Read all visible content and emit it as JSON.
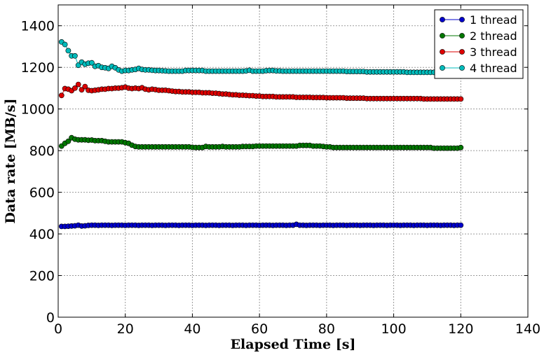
{
  "chart_data": {
    "type": "line",
    "xlabel": "Elapsed Time [s]",
    "ylabel": "Data rate [MB/s]",
    "xlim": [
      0,
      140
    ],
    "ylim": [
      0,
      1500
    ],
    "xticks": [
      0,
      20,
      40,
      60,
      80,
      100,
      120,
      140
    ],
    "yticks": [
      0,
      200,
      400,
      600,
      800,
      1000,
      1200,
      1400
    ],
    "grid": true,
    "legend_position": "top-right",
    "series": [
      {
        "name": "1 thread",
        "color": "#0000cc",
        "x": [
          1,
          2,
          3,
          4,
          5,
          6,
          7,
          8,
          9,
          10,
          11,
          12,
          13,
          14,
          15,
          16,
          17,
          18,
          19,
          20,
          21,
          22,
          23,
          24,
          25,
          26,
          27,
          28,
          29,
          30,
          31,
          32,
          33,
          34,
          35,
          36,
          37,
          38,
          39,
          40,
          41,
          42,
          43,
          44,
          45,
          46,
          47,
          48,
          49,
          50,
          51,
          52,
          53,
          54,
          55,
          56,
          57,
          58,
          59,
          60,
          61,
          62,
          63,
          64,
          65,
          66,
          67,
          68,
          69,
          70,
          71,
          72,
          73,
          74,
          75,
          76,
          77,
          78,
          79,
          80,
          81,
          82,
          83,
          84,
          85,
          86,
          87,
          88,
          89,
          90,
          91,
          92,
          93,
          94,
          95,
          96,
          97,
          98,
          99,
          100,
          101,
          102,
          103,
          104,
          105,
          106,
          107,
          108,
          109,
          110,
          111,
          112,
          113,
          114,
          115,
          116,
          117,
          118,
          119,
          120
        ],
        "y": [
          436,
          436,
          437,
          438,
          439,
          442,
          438,
          439,
          441,
          442,
          442,
          441,
          442,
          442,
          442,
          441,
          442,
          442,
          442,
          441,
          442,
          442,
          442,
          441,
          442,
          442,
          442,
          441,
          442,
          442,
          442,
          441,
          442,
          442,
          442,
          441,
          442,
          442,
          442,
          441,
          442,
          442,
          442,
          441,
          442,
          442,
          442,
          441,
          442,
          442,
          442,
          441,
          442,
          442,
          442,
          441,
          442,
          442,
          442,
          441,
          442,
          442,
          442,
          441,
          442,
          442,
          442,
          441,
          442,
          442,
          446,
          442,
          442,
          441,
          442,
          442,
          442,
          441,
          442,
          442,
          442,
          441,
          442,
          442,
          442,
          441,
          442,
          442,
          442,
          441,
          442,
          442,
          442,
          441,
          442,
          442,
          442,
          441,
          442,
          442,
          442,
          441,
          442,
          442,
          442,
          441,
          442,
          442,
          442,
          441,
          442,
          442,
          442,
          441,
          442,
          442,
          442,
          441,
          442,
          442
        ]
      },
      {
        "name": "2 thread",
        "color": "#007700",
        "x": [
          1,
          2,
          3,
          4,
          5,
          6,
          7,
          8,
          9,
          10,
          11,
          12,
          13,
          14,
          15,
          16,
          17,
          18,
          19,
          20,
          21,
          22,
          23,
          24,
          25,
          26,
          27,
          28,
          29,
          30,
          31,
          32,
          33,
          34,
          35,
          36,
          37,
          38,
          39,
          40,
          41,
          42,
          43,
          44,
          45,
          46,
          47,
          48,
          49,
          50,
          51,
          52,
          53,
          54,
          55,
          56,
          57,
          58,
          59,
          60,
          61,
          62,
          63,
          64,
          65,
          66,
          67,
          68,
          69,
          70,
          71,
          72,
          73,
          74,
          75,
          76,
          77,
          78,
          79,
          80,
          81,
          82,
          83,
          84,
          85,
          86,
          87,
          88,
          89,
          90,
          91,
          92,
          93,
          94,
          95,
          96,
          97,
          98,
          99,
          100,
          101,
          102,
          103,
          104,
          105,
          106,
          107,
          108,
          109,
          110,
          111,
          112,
          113,
          114,
          115,
          116,
          117,
          118,
          119,
          120
        ],
        "y": [
          822,
          835,
          845,
          862,
          855,
          852,
          852,
          852,
          850,
          851,
          848,
          848,
          848,
          845,
          842,
          842,
          842,
          842,
          842,
          838,
          835,
          826,
          820,
          818,
          818,
          818,
          818,
          818,
          818,
          818,
          818,
          818,
          818,
          818,
          818,
          818,
          818,
          818,
          818,
          816,
          815,
          815,
          815,
          820,
          818,
          818,
          818,
          818,
          820,
          818,
          818,
          818,
          818,
          818,
          820,
          820,
          820,
          820,
          822,
          822,
          822,
          822,
          822,
          822,
          822,
          822,
          822,
          822,
          822,
          822,
          822,
          825,
          825,
          825,
          825,
          822,
          822,
          822,
          820,
          818,
          818,
          815,
          815,
          815,
          815,
          815,
          815,
          815,
          815,
          815,
          815,
          815,
          815,
          815,
          815,
          815,
          815,
          815,
          815,
          815,
          815,
          815,
          815,
          815,
          815,
          815,
          815,
          815,
          815,
          815,
          815,
          812,
          812,
          812,
          812,
          812,
          812,
          812,
          812,
          815
        ]
      },
      {
        "name": "3 thread",
        "color": "#dd0000",
        "x": [
          1,
          2,
          3,
          4,
          5,
          6,
          7,
          8,
          9,
          10,
          11,
          12,
          13,
          14,
          15,
          16,
          17,
          18,
          19,
          20,
          21,
          22,
          23,
          24,
          25,
          26,
          27,
          28,
          29,
          30,
          31,
          32,
          33,
          34,
          35,
          36,
          37,
          38,
          39,
          40,
          41,
          42,
          43,
          44,
          45,
          46,
          47,
          48,
          49,
          50,
          51,
          52,
          53,
          54,
          55,
          56,
          57,
          58,
          59,
          60,
          61,
          62,
          63,
          64,
          65,
          66,
          67,
          68,
          69,
          70,
          71,
          72,
          73,
          74,
          75,
          76,
          77,
          78,
          79,
          80,
          81,
          82,
          83,
          84,
          85,
          86,
          87,
          88,
          89,
          90,
          91,
          92,
          93,
          94,
          95,
          96,
          97,
          98,
          99,
          100,
          101,
          102,
          103,
          104,
          105,
          106,
          107,
          108,
          109,
          110,
          111,
          112,
          113,
          114,
          115,
          116,
          117,
          118,
          119,
          120
        ],
        "y": [
          1065,
          1098,
          1095,
          1088,
          1100,
          1118,
          1092,
          1108,
          1090,
          1088,
          1090,
          1092,
          1095,
          1095,
          1098,
          1098,
          1100,
          1100,
          1102,
          1105,
          1100,
          1098,
          1100,
          1098,
          1102,
          1095,
          1092,
          1095,
          1093,
          1090,
          1090,
          1090,
          1088,
          1086,
          1084,
          1084,
          1082,
          1082,
          1082,
          1080,
          1080,
          1080,
          1078,
          1078,
          1078,
          1076,
          1076,
          1074,
          1072,
          1072,
          1070,
          1068,
          1068,
          1066,
          1066,
          1065,
          1064,
          1064,
          1062,
          1062,
          1060,
          1060,
          1060,
          1060,
          1058,
          1058,
          1058,
          1058,
          1058,
          1058,
          1056,
          1056,
          1056,
          1056,
          1056,
          1055,
          1055,
          1055,
          1055,
          1054,
          1054,
          1054,
          1054,
          1054,
          1054,
          1052,
          1052,
          1052,
          1052,
          1052,
          1052,
          1050,
          1050,
          1050,
          1050,
          1050,
          1050,
          1050,
          1050,
          1050,
          1050,
          1050,
          1050,
          1050,
          1050,
          1050,
          1050,
          1050,
          1048,
          1048,
          1048,
          1048,
          1048,
          1048,
          1048,
          1048,
          1048,
          1048,
          1048,
          1048
        ]
      },
      {
        "name": "4 thread",
        "color": "#00bbbb",
        "x": [
          1,
          2,
          3,
          4,
          5,
          6,
          7,
          8,
          9,
          10,
          11,
          12,
          13,
          14,
          15,
          16,
          17,
          18,
          19,
          20,
          21,
          22,
          23,
          24,
          25,
          26,
          27,
          28,
          29,
          30,
          31,
          32,
          33,
          34,
          35,
          36,
          37,
          38,
          39,
          40,
          41,
          42,
          43,
          44,
          45,
          46,
          47,
          48,
          49,
          50,
          51,
          52,
          53,
          54,
          55,
          56,
          57,
          58,
          59,
          60,
          61,
          62,
          63,
          64,
          65,
          66,
          67,
          68,
          69,
          70,
          71,
          72,
          73,
          74,
          75,
          76,
          77,
          78,
          79,
          80,
          81,
          82,
          83,
          84,
          85,
          86,
          87,
          88,
          89,
          90,
          91,
          92,
          93,
          94,
          95,
          96,
          97,
          98,
          99,
          100,
          101,
          102,
          103,
          104,
          105,
          106,
          107,
          108,
          109,
          110,
          111,
          112,
          113,
          114,
          115,
          116,
          117,
          118,
          119,
          120
        ],
        "y": [
          1322,
          1310,
          1280,
          1255,
          1255,
          1210,
          1225,
          1215,
          1220,
          1222,
          1205,
          1208,
          1200,
          1198,
          1195,
          1205,
          1198,
          1188,
          1182,
          1185,
          1185,
          1188,
          1190,
          1195,
          1190,
          1188,
          1188,
          1186,
          1185,
          1185,
          1184,
          1183,
          1182,
          1182,
          1182,
          1182,
          1182,
          1185,
          1185,
          1185,
          1185,
          1185,
          1185,
          1182,
          1182,
          1182,
          1182,
          1182,
          1182,
          1182,
          1182,
          1182,
          1182,
          1182,
          1182,
          1183,
          1186,
          1182,
          1182,
          1182,
          1182,
          1184,
          1185,
          1185,
          1183,
          1183,
          1182,
          1182,
          1182,
          1182,
          1182,
          1182,
          1182,
          1182,
          1182,
          1182,
          1182,
          1182,
          1182,
          1182,
          1182,
          1182,
          1182,
          1182,
          1182,
          1180,
          1180,
          1180,
          1180,
          1180,
          1180,
          1178,
          1178,
          1178,
          1178,
          1178,
          1178,
          1178,
          1178,
          1178,
          1178,
          1178,
          1178,
          1176,
          1176,
          1176,
          1176,
          1176,
          1176,
          1176,
          1176,
          1176,
          1176,
          1176,
          1176,
          1176,
          1176,
          1176,
          1176,
          1175
        ]
      }
    ]
  }
}
